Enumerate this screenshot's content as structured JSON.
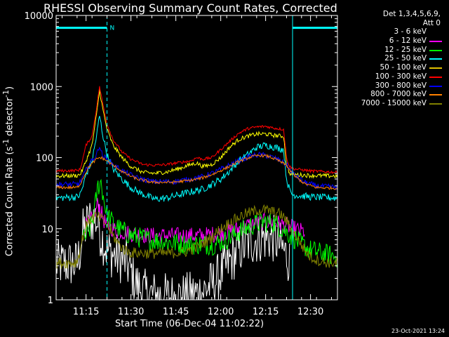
{
  "chart_data": {
    "type": "line",
    "title": "RHESSI Observing Summary Count Rates, Corrected",
    "xlabel": "Start Time (06-Dec-04 11:02:22)",
    "ylabel_parts": [
      "Corrected Count Rate (s",
      "-1",
      " detector",
      "-1",
      ")"
    ],
    "yscale": "log",
    "ylim": [
      1,
      10000
    ],
    "xlim_min": [
      3,
      97
    ],
    "ytick_labels": [
      "1",
      "10",
      "100",
      "1000",
      "10000"
    ],
    "ytick_values": [
      1,
      10,
      100,
      1000,
      10000
    ],
    "xtick_labels": [
      "11:15",
      "11:30",
      "11:45",
      "12:00",
      "12:15",
      "12:30"
    ],
    "xtick_values": [
      13,
      28,
      43,
      58,
      73,
      88
    ],
    "legend_header": [
      "Det 1,3,4,5,6,9,",
      "Att 0"
    ],
    "timestamp": "23-Oct-2021 13:24",
    "night_marker": "N",
    "night_intervals": [
      [
        3,
        20
      ],
      [
        82,
        97
      ]
    ],
    "night_level": 6700,
    "night_color": "#00ffff",
    "series": [
      {
        "name": "3 - 6 keV",
        "color": "#ffffff",
        "legend_color": "#000000",
        "noise": 0.35,
        "points": [
          [
            3,
            3.2
          ],
          [
            10,
            3.2
          ],
          [
            11,
            5
          ],
          [
            12,
            9
          ],
          [
            14,
            13
          ],
          [
            16,
            14
          ],
          [
            17,
            12
          ],
          [
            18,
            8
          ],
          [
            20,
            5
          ],
          [
            23,
            4
          ],
          [
            26,
            3.5
          ],
          [
            28,
            2.5
          ],
          [
            30,
            1.6
          ],
          [
            33,
            1.2
          ],
          [
            40,
            1.1
          ],
          [
            46,
            1.1
          ],
          [
            52,
            1.3
          ],
          [
            56,
            1.8
          ],
          [
            60,
            3
          ],
          [
            64,
            5
          ],
          [
            68,
            6.5
          ],
          [
            72,
            7.5
          ],
          [
            75,
            7.5
          ],
          [
            77,
            6.5
          ],
          [
            79,
            5
          ],
          [
            81,
            3.5
          ]
        ]
      },
      {
        "name": "6 - 12 keV",
        "color": "#ff00ff",
        "noise": 0.12,
        "points": [
          [
            12,
            10
          ],
          [
            14,
            12
          ],
          [
            16,
            16
          ],
          [
            17,
            24
          ],
          [
            18,
            17
          ],
          [
            19,
            13
          ],
          [
            20,
            11
          ],
          [
            23,
            9.5
          ],
          [
            28,
            8.5
          ],
          [
            35,
            8
          ],
          [
            45,
            8
          ],
          [
            52,
            8
          ],
          [
            57,
            8.5
          ],
          [
            60,
            9
          ],
          [
            64,
            10
          ],
          [
            68,
            11.5
          ],
          [
            72,
            12.5
          ],
          [
            76,
            12.5
          ],
          [
            80,
            11
          ],
          [
            84,
            9.5
          ],
          [
            86,
            9
          ]
        ]
      },
      {
        "name": "12 - 25 keV",
        "color": "#00ff00",
        "noise": 0.15,
        "points": [
          [
            12,
            7
          ],
          [
            14,
            9
          ],
          [
            15.5,
            15
          ],
          [
            17,
            40
          ],
          [
            18,
            45
          ],
          [
            19,
            25
          ],
          [
            20,
            16
          ],
          [
            22,
            12
          ],
          [
            24,
            10
          ],
          [
            28,
            8
          ],
          [
            34,
            7
          ],
          [
            40,
            6.5
          ],
          [
            46,
            6
          ],
          [
            52,
            6
          ],
          [
            56,
            6
          ],
          [
            60,
            7
          ],
          [
            64,
            9
          ],
          [
            68,
            11
          ],
          [
            72,
            12.5
          ],
          [
            76,
            12
          ],
          [
            80,
            9
          ],
          [
            84,
            6.5
          ],
          [
            88,
            5
          ],
          [
            92,
            4.5
          ],
          [
            97,
            4
          ]
        ]
      },
      {
        "name": "25 - 50 keV",
        "color": "#00ffff",
        "noise": 0.05,
        "points": [
          [
            3,
            27
          ],
          [
            10,
            28
          ],
          [
            11,
            30
          ],
          [
            12,
            40
          ],
          [
            13,
            58
          ],
          [
            15,
            90
          ],
          [
            16.5,
            200
          ],
          [
            17.5,
            390
          ],
          [
            18.5,
            220
          ],
          [
            20,
            110
          ],
          [
            22,
            70
          ],
          [
            25,
            50
          ],
          [
            28,
            38
          ],
          [
            31,
            32
          ],
          [
            34,
            28
          ],
          [
            36,
            26
          ],
          [
            40,
            27
          ],
          [
            44,
            30
          ],
          [
            48,
            33
          ],
          [
            52,
            36
          ],
          [
            55,
            42
          ],
          [
            58,
            50
          ],
          [
            61,
            65
          ],
          [
            64,
            90
          ],
          [
            67,
            110
          ],
          [
            70,
            140
          ],
          [
            73,
            150
          ],
          [
            76,
            140
          ],
          [
            79,
            130
          ],
          [
            80,
            50
          ],
          [
            81,
            35
          ],
          [
            82,
            30
          ],
          [
            88,
            28
          ],
          [
            97,
            27
          ]
        ]
      },
      {
        "name": "50 - 100 keV",
        "color": "#ffff00",
        "legend_color": "#e0c000",
        "noise": 0.03,
        "points": [
          [
            3,
            55
          ],
          [
            10,
            56
          ],
          [
            11,
            58
          ],
          [
            12,
            70
          ],
          [
            13,
            90
          ],
          [
            15,
            150
          ],
          [
            16.5,
            400
          ],
          [
            17.5,
            900
          ],
          [
            18.5,
            500
          ],
          [
            20,
            250
          ],
          [
            22,
            150
          ],
          [
            25,
            100
          ],
          [
            28,
            75
          ],
          [
            32,
            62
          ],
          [
            36,
            60
          ],
          [
            40,
            63
          ],
          [
            44,
            70
          ],
          [
            48,
            80
          ],
          [
            50,
            84
          ],
          [
            52,
            75
          ],
          [
            55,
            80
          ],
          [
            58,
            100
          ],
          [
            61,
            140
          ],
          [
            64,
            180
          ],
          [
            67,
            200
          ],
          [
            70,
            215
          ],
          [
            73,
            215
          ],
          [
            76,
            205
          ],
          [
            79,
            200
          ],
          [
            80,
            80
          ],
          [
            81,
            60
          ],
          [
            82,
            58
          ],
          [
            88,
            56
          ],
          [
            97,
            55
          ]
        ]
      },
      {
        "name": "100 - 300 keV",
        "color": "#ff0000",
        "noise": 0.02,
        "points": [
          [
            3,
            65
          ],
          [
            10,
            66
          ],
          [
            11,
            68
          ],
          [
            12,
            100
          ],
          [
            13,
            150
          ],
          [
            15,
            200
          ],
          [
            16.5,
            500
          ],
          [
            17.5,
            1000
          ],
          [
            18.5,
            600
          ],
          [
            20,
            300
          ],
          [
            22,
            180
          ],
          [
            25,
            120
          ],
          [
            28,
            95
          ],
          [
            32,
            80
          ],
          [
            36,
            78
          ],
          [
            40,
            80
          ],
          [
            44,
            85
          ],
          [
            48,
            90
          ],
          [
            50,
            100
          ],
          [
            52,
            95
          ],
          [
            55,
            100
          ],
          [
            58,
            130
          ],
          [
            61,
            170
          ],
          [
            64,
            220
          ],
          [
            67,
            255
          ],
          [
            70,
            270
          ],
          [
            73,
            275
          ],
          [
            76,
            260
          ],
          [
            79,
            250
          ],
          [
            80,
            100
          ],
          [
            81,
            75
          ],
          [
            82,
            70
          ],
          [
            88,
            65
          ],
          [
            97,
            62
          ]
        ]
      },
      {
        "name": "300 - 800 keV",
        "color": "#0000ff",
        "noise": 0.04,
        "points": [
          [
            3,
            42
          ],
          [
            10,
            42
          ],
          [
            11,
            45
          ],
          [
            12,
            55
          ],
          [
            14,
            80
          ],
          [
            16.5,
            110
          ],
          [
            17.5,
            150
          ],
          [
            18.5,
            105
          ],
          [
            20,
            95
          ],
          [
            22,
            80
          ],
          [
            26,
            62
          ],
          [
            30,
            52
          ],
          [
            35,
            46
          ],
          [
            42,
            46
          ],
          [
            48,
            50
          ],
          [
            52,
            54
          ],
          [
            56,
            62
          ],
          [
            60,
            75
          ],
          [
            64,
            90
          ],
          [
            68,
            105
          ],
          [
            71,
            110
          ],
          [
            74,
            105
          ],
          [
            77,
            95
          ],
          [
            80,
            80
          ],
          [
            82,
            60
          ],
          [
            86,
            45
          ],
          [
            90,
            40
          ],
          [
            97,
            38
          ]
        ]
      },
      {
        "name": "800 - 7000 keV",
        "color": "#ff8000",
        "noise": 0.02,
        "points": [
          [
            3,
            38
          ],
          [
            10,
            38
          ],
          [
            11,
            42
          ],
          [
            12,
            52
          ],
          [
            14,
            75
          ],
          [
            16.5,
            95
          ],
          [
            17.5,
            100
          ],
          [
            18.5,
            98
          ],
          [
            20,
            90
          ],
          [
            22,
            78
          ],
          [
            26,
            60
          ],
          [
            30,
            50
          ],
          [
            35,
            45
          ],
          [
            42,
            45
          ],
          [
            48,
            48
          ],
          [
            52,
            52
          ],
          [
            56,
            60
          ],
          [
            60,
            72
          ],
          [
            64,
            88
          ],
          [
            68,
            102
          ],
          [
            71,
            108
          ],
          [
            74,
            104
          ],
          [
            77,
            92
          ],
          [
            80,
            78
          ],
          [
            82,
            58
          ],
          [
            86,
            43
          ],
          [
            90,
            38
          ],
          [
            97,
            37
          ]
        ]
      },
      {
        "name": "7000 - 15000 keV",
        "color": "#808000",
        "noise": 0.08,
        "points": [
          [
            3,
            3.3
          ],
          [
            9,
            3.3
          ],
          [
            10,
            3.5
          ],
          [
            11,
            5
          ],
          [
            12,
            8
          ],
          [
            13,
            11
          ],
          [
            14,
            13
          ],
          [
            16,
            15
          ],
          [
            18,
            14
          ],
          [
            20,
            11
          ],
          [
            22,
            8
          ],
          [
            24,
            6
          ],
          [
            26,
            5
          ],
          [
            28,
            4.6
          ],
          [
            34,
            4.5
          ],
          [
            40,
            4.5
          ],
          [
            46,
            4.7
          ],
          [
            50,
            5.5
          ],
          [
            54,
            7
          ],
          [
            58,
            10
          ],
          [
            62,
            13
          ],
          [
            66,
            16
          ],
          [
            70,
            18
          ],
          [
            72,
            18.5
          ],
          [
            74,
            18
          ],
          [
            78,
            16
          ],
          [
            80,
            13
          ],
          [
            82,
            9
          ],
          [
            84,
            7
          ],
          [
            86,
            5
          ],
          [
            88,
            4
          ],
          [
            92,
            3.4
          ],
          [
            97,
            3.3
          ]
        ]
      }
    ]
  }
}
